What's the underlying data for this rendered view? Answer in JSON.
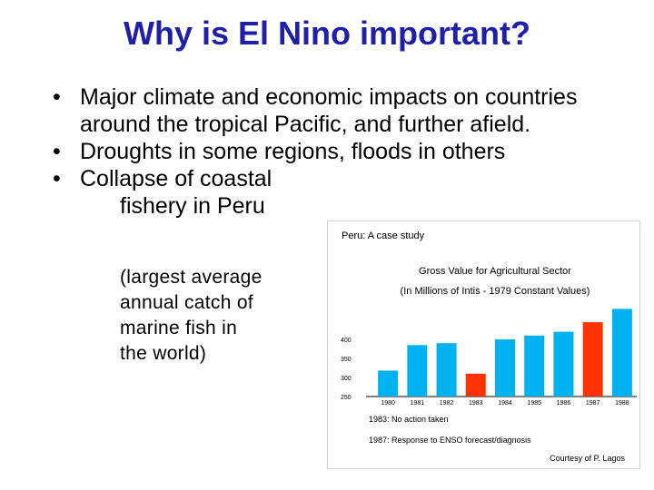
{
  "title": "Why is El Nino important?",
  "bullets": [
    {
      "text": "Major climate and economic impacts on countries around the tropical Pacific, and further afield."
    },
    {
      "text": "Droughts in some regions, floods in others"
    },
    {
      "text": "Collapse of coastal"
    }
  ],
  "bullet_symbol": "•",
  "bullet3_cont": "fishery in Peru",
  "sub_note": [
    "(largest average",
    "annual catch of",
    "marine fish in",
    "the world)"
  ],
  "figure": {
    "caption": "Peru: A case study",
    "notes": [
      "1983: No action taken",
      "1987: Response to ENSO forecast/diagnosis"
    ],
    "credit": "Courtesy of P. Lagos"
  },
  "chart_data": {
    "type": "bar",
    "title": "Gross Value for Agricultural Sector",
    "subtitle": "(In Millions of Intis - 1979 Constant Values)",
    "xlabel": "",
    "ylabel": "",
    "categories": [
      "1980",
      "1981",
      "1982",
      "1983",
      "1984",
      "1985",
      "1986",
      "1987",
      "1988"
    ],
    "values": [
      318,
      385,
      390,
      310,
      400,
      410,
      420,
      445,
      480
    ],
    "highlight": [
      "1983",
      "1987"
    ],
    "ylim": [
      250,
      500
    ],
    "yticks": [
      "250",
      "300",
      "350",
      "400"
    ],
    "colors": {
      "normal": "#00b2f0",
      "highlight": "#ff3300",
      "axis": "#000000"
    },
    "grid": false
  }
}
